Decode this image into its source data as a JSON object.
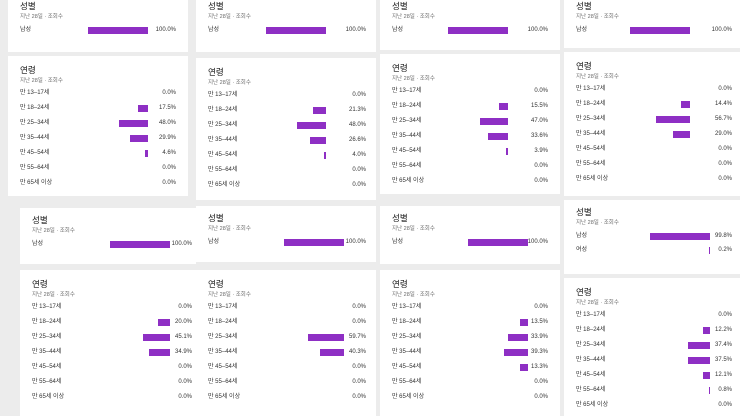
{
  "accent_color": "#8e2fc4",
  "subtitle": "지난 28일 · 조회수",
  "panels": [
    {
      "gender": {
        "title": "성별",
        "rows": [
          {
            "label": "남성",
            "value": 100.0,
            "text": "100.0%"
          }
        ]
      },
      "age": {
        "title": "연령",
        "rows": [
          {
            "label": "만 13–17세",
            "value": 0.0,
            "text": "0.0%"
          },
          {
            "label": "만 18–24세",
            "value": 17.5,
            "text": "17.5%"
          },
          {
            "label": "만 25–34세",
            "value": 48.0,
            "text": "48.0%"
          },
          {
            "label": "만 35–44세",
            "value": 29.9,
            "text": "29.9%"
          },
          {
            "label": "만 45–54세",
            "value": 4.6,
            "text": "4.6%"
          },
          {
            "label": "만 55–64세",
            "value": 0.0,
            "text": "0.0%"
          },
          {
            "label": "만 65세 이상",
            "value": 0.0,
            "text": "0.0%"
          }
        ]
      }
    },
    {
      "gender": {
        "title": "성별",
        "rows": [
          {
            "label": "남성",
            "value": 100.0,
            "text": "100.0%"
          }
        ]
      },
      "age": {
        "title": "연령",
        "rows": [
          {
            "label": "만 13–17세",
            "value": 0.0,
            "text": "0.0%"
          },
          {
            "label": "만 18–24세",
            "value": 21.3,
            "text": "21.3%"
          },
          {
            "label": "만 25–34세",
            "value": 48.0,
            "text": "48.0%"
          },
          {
            "label": "만 35–44세",
            "value": 26.6,
            "text": "26.6%"
          },
          {
            "label": "만 45–54세",
            "value": 4.0,
            "text": "4.0%"
          },
          {
            "label": "만 55–64세",
            "value": 0.0,
            "text": "0.0%"
          },
          {
            "label": "만 65세 이상",
            "value": 0.0,
            "text": "0.0%"
          }
        ]
      }
    },
    {
      "gender": {
        "title": "성별",
        "rows": [
          {
            "label": "남성",
            "value": 100.0,
            "text": "100.0%"
          }
        ]
      },
      "age": {
        "title": "연령",
        "rows": [
          {
            "label": "만 13–17세",
            "value": 0.0,
            "text": "0.0%"
          },
          {
            "label": "만 18–24세",
            "value": 15.5,
            "text": "15.5%"
          },
          {
            "label": "만 25–34세",
            "value": 47.0,
            "text": "47.0%"
          },
          {
            "label": "만 35–44세",
            "value": 33.6,
            "text": "33.6%"
          },
          {
            "label": "만 45–54세",
            "value": 3.9,
            "text": "3.9%"
          },
          {
            "label": "만 55–64세",
            "value": 0.0,
            "text": "0.0%"
          },
          {
            "label": "만 65세 이상",
            "value": 0.0,
            "text": "0.0%"
          }
        ]
      }
    },
    {
      "gender": {
        "title": "성별",
        "rows": [
          {
            "label": "남성",
            "value": 100.0,
            "text": "100.0%"
          }
        ]
      },
      "age": {
        "title": "연령",
        "rows": [
          {
            "label": "만 13–17세",
            "value": 0.0,
            "text": "0.0%"
          },
          {
            "label": "만 18–24세",
            "value": 14.4,
            "text": "14.4%"
          },
          {
            "label": "만 25–34세",
            "value": 56.7,
            "text": "56.7%"
          },
          {
            "label": "만 35–44세",
            "value": 29.0,
            "text": "29.0%"
          },
          {
            "label": "만 45–54세",
            "value": 0.0,
            "text": "0.0%"
          },
          {
            "label": "만 55–64세",
            "value": 0.0,
            "text": "0.0%"
          },
          {
            "label": "만 65세 이상",
            "value": 0.0,
            "text": "0.0%"
          }
        ]
      }
    },
    {
      "gender": {
        "title": "성별",
        "rows": [
          {
            "label": "남성",
            "value": 100.0,
            "text": "100.0%"
          }
        ]
      },
      "age": {
        "title": "연령",
        "rows": [
          {
            "label": "만 13–17세",
            "value": 0.0,
            "text": "0.0%"
          },
          {
            "label": "만 18–24세",
            "value": 20.0,
            "text": "20.0%"
          },
          {
            "label": "만 25–34세",
            "value": 45.1,
            "text": "45.1%"
          },
          {
            "label": "만 35–44세",
            "value": 34.9,
            "text": "34.9%"
          },
          {
            "label": "만 45–54세",
            "value": 0.0,
            "text": "0.0%"
          },
          {
            "label": "만 55–64세",
            "value": 0.0,
            "text": "0.0%"
          },
          {
            "label": "만 65세 이상",
            "value": 0.0,
            "text": "0.0%"
          }
        ]
      }
    },
    {
      "gender": {
        "title": "성별",
        "rows": [
          {
            "label": "남성",
            "value": 100.0,
            "text": "100.0%"
          }
        ]
      },
      "age": {
        "title": "연령",
        "rows": [
          {
            "label": "만 13–17세",
            "value": 0.0,
            "text": "0.0%"
          },
          {
            "label": "만 18–24세",
            "value": 0.0,
            "text": "0.0%"
          },
          {
            "label": "만 25–34세",
            "value": 59.7,
            "text": "59.7%"
          },
          {
            "label": "만 35–44세",
            "value": 40.3,
            "text": "40.3%"
          },
          {
            "label": "만 45–54세",
            "value": 0.0,
            "text": "0.0%"
          },
          {
            "label": "만 55–64세",
            "value": 0.0,
            "text": "0.0%"
          },
          {
            "label": "만 65세 이상",
            "value": 0.0,
            "text": "0.0%"
          }
        ]
      }
    },
    {
      "gender": {
        "title": "성별",
        "rows": [
          {
            "label": "남성",
            "value": 100.0,
            "text": "100.0%"
          }
        ]
      },
      "age": {
        "title": "연령",
        "rows": [
          {
            "label": "만 13–17세",
            "value": 0.0,
            "text": "0.0%"
          },
          {
            "label": "만 18–24세",
            "value": 13.5,
            "text": "13.5%"
          },
          {
            "label": "만 25–34세",
            "value": 33.9,
            "text": "33.9%"
          },
          {
            "label": "만 35–44세",
            "value": 39.3,
            "text": "39.3%"
          },
          {
            "label": "만 45–54세",
            "value": 13.3,
            "text": "13.3%"
          },
          {
            "label": "만 55–64세",
            "value": 0.0,
            "text": "0.0%"
          },
          {
            "label": "만 65세 이상",
            "value": 0.0,
            "text": "0.0%"
          }
        ]
      }
    },
    {
      "gender": {
        "title": "성별",
        "rows": [
          {
            "label": "남성",
            "value": 99.8,
            "text": "99.8%"
          },
          {
            "label": "여성",
            "value": 0.2,
            "text": "0.2%"
          }
        ]
      },
      "age": {
        "title": "연령",
        "rows": [
          {
            "label": "만 13–17세",
            "value": 0.0,
            "text": "0.0%"
          },
          {
            "label": "만 18–24세",
            "value": 12.2,
            "text": "12.2%"
          },
          {
            "label": "만 25–34세",
            "value": 37.4,
            "text": "37.4%"
          },
          {
            "label": "만 35–44세",
            "value": 37.5,
            "text": "37.5%"
          },
          {
            "label": "만 45–54세",
            "value": 12.1,
            "text": "12.1%"
          },
          {
            "label": "만 55–64세",
            "value": 0.8,
            "text": "0.8%"
          },
          {
            "label": "만 65세 이상",
            "value": 0.0,
            "text": "0.0%"
          }
        ]
      }
    }
  ]
}
